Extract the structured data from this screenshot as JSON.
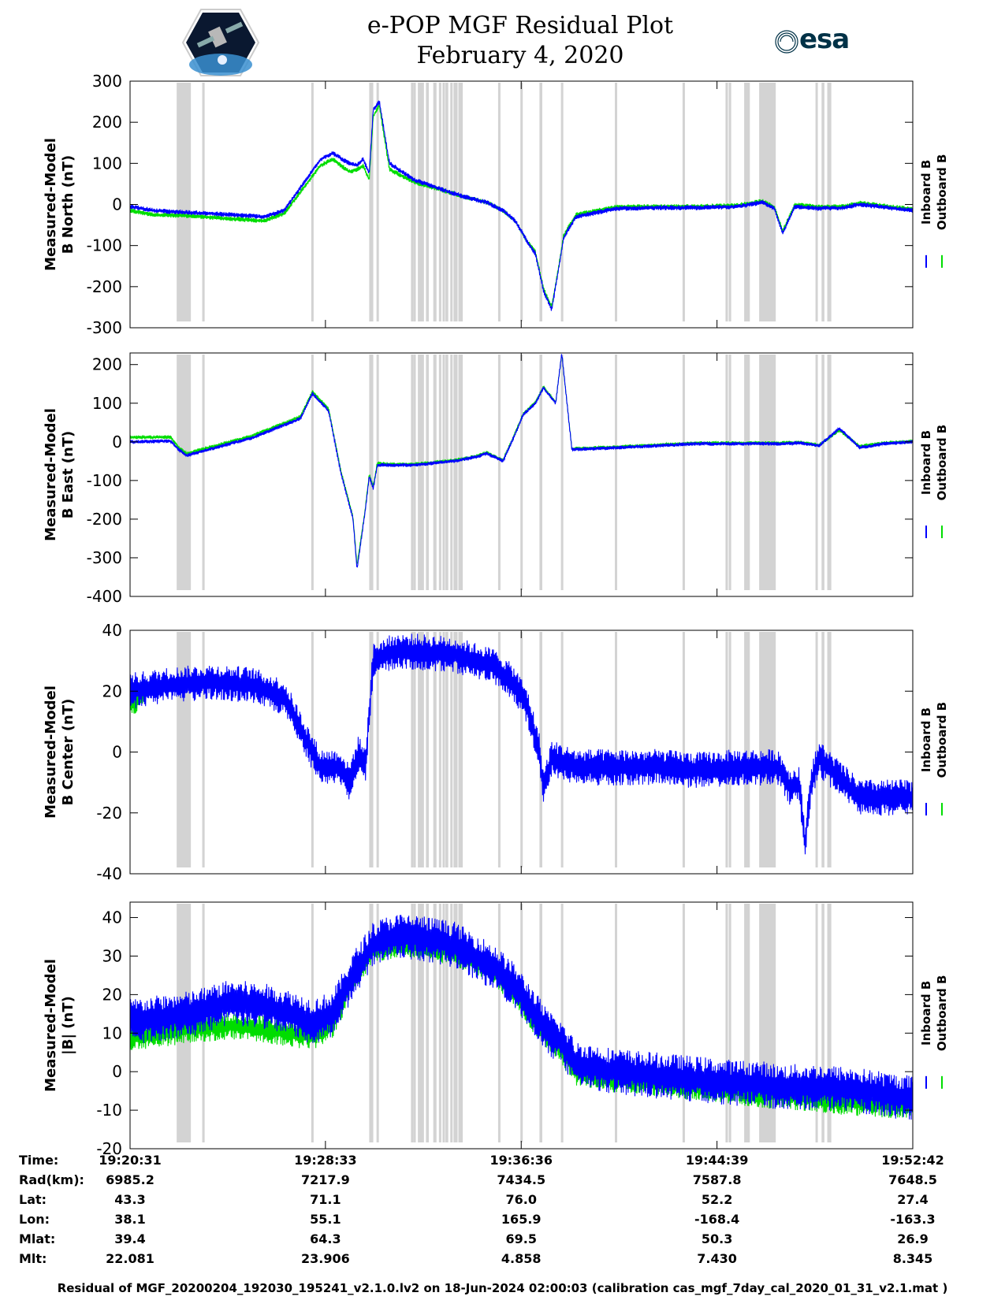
{
  "header": {
    "title": "e-POP MGF Residual Plot",
    "date": "February 4, 2020",
    "logo_left": "cassiope-logo",
    "logo_right_text": "esa"
  },
  "colors": {
    "inboard": "#0000ff",
    "outboard": "#00dd00",
    "gap_band": "#d3d3d3"
  },
  "legend": {
    "inboard": "Inboard B",
    "outboard": "Outboard B"
  },
  "time_axis": {
    "ticks_seconds": [
      0,
      482,
      965,
      1448,
      1931
    ],
    "start": "19:20:31",
    "end": "19:52:42"
  },
  "gap_bands_seconds": [
    [
      115,
      150
    ],
    [
      178,
      184
    ],
    [
      447,
      452
    ],
    [
      590,
      600
    ],
    [
      608,
      612
    ],
    [
      693,
      697
    ],
    [
      699,
      705
    ],
    [
      710,
      725
    ],
    [
      730,
      737
    ],
    [
      748,
      756
    ],
    [
      762,
      766
    ],
    [
      771,
      774
    ],
    [
      778,
      785
    ],
    [
      790,
      795
    ],
    [
      798,
      808
    ],
    [
      815,
      818
    ],
    [
      810,
      813
    ],
    [
      908,
      912
    ],
    [
      963,
      967
    ],
    [
      1010,
      1017
    ],
    [
      1063,
      1068
    ],
    [
      1196,
      1200
    ],
    [
      1363,
      1368
    ],
    [
      1469,
      1475
    ],
    [
      1477,
      1483
    ],
    [
      1515,
      1529
    ],
    [
      1552,
      1593
    ],
    [
      1691,
      1695
    ],
    [
      1706,
      1713
    ],
    [
      1720,
      1730
    ]
  ],
  "chart_data": [
    {
      "type": "line",
      "ylabel": [
        "Measured-Model",
        "B North (nT)"
      ],
      "ylim": [
        -300,
        300
      ],
      "yticks": [
        300,
        200,
        100,
        0,
        -100,
        -200,
        -300
      ],
      "grid": false,
      "legend_position": "right",
      "series": [
        {
          "name": "Inboard B",
          "noise": 5,
          "x": [
            0,
            60,
            150,
            250,
            330,
            380,
            420,
            470,
            500,
            540,
            560,
            575,
            590,
            600,
            615,
            640,
            700,
            760,
            820,
            880,
            920,
            950,
            980,
            1000,
            1020,
            1040,
            1055,
            1070,
            1100,
            1200,
            1300,
            1400,
            1500,
            1560,
            1590,
            1610,
            1640,
            1700,
            1760,
            1800,
            1931
          ],
          "y": [
            -5,
            -15,
            -20,
            -25,
            -30,
            -15,
            40,
            110,
            125,
            100,
            95,
            110,
            75,
            230,
            250,
            100,
            60,
            40,
            20,
            5,
            -15,
            -40,
            -90,
            -120,
            -210,
            -255,
            -170,
            -80,
            -30,
            -10,
            -8,
            -8,
            -5,
            5,
            -10,
            -70,
            -5,
            -10,
            -8,
            0,
            -15
          ]
        },
        {
          "name": "Outboard B",
          "noise": 5,
          "x": [
            0,
            60,
            150,
            250,
            330,
            380,
            420,
            470,
            500,
            540,
            560,
            575,
            590,
            600,
            615,
            640,
            700,
            760,
            820,
            880,
            920,
            950,
            980,
            1000,
            1020,
            1040,
            1055,
            1070,
            1100,
            1200,
            1300,
            1400,
            1500,
            1560,
            1590,
            1610,
            1640,
            1700,
            1760,
            1800,
            1931
          ],
          "y": [
            -15,
            -25,
            -28,
            -35,
            -40,
            -22,
            30,
            95,
            110,
            80,
            85,
            95,
            60,
            215,
            240,
            85,
            55,
            38,
            20,
            5,
            -15,
            -40,
            -90,
            -115,
            -205,
            -250,
            -165,
            -75,
            -25,
            -6,
            -5,
            -5,
            -2,
            8,
            -7,
            -65,
            0,
            -6,
            -5,
            4,
            -12
          ]
        }
      ]
    },
    {
      "type": "line",
      "ylabel": [
        "Measured-Model",
        "B East (nT)"
      ],
      "ylim": [
        -400,
        230
      ],
      "yticks": [
        200,
        100,
        0,
        -100,
        -200,
        -300,
        -400
      ],
      "grid": false,
      "legend_position": "right",
      "series": [
        {
          "name": "Inboard B",
          "noise": 4,
          "x": [
            0,
            100,
            120,
            140,
            300,
            420,
            450,
            490,
            520,
            550,
            560,
            580,
            590,
            600,
            610,
            640,
            700,
            800,
            850,
            880,
            920,
            950,
            970,
            1000,
            1020,
            1050,
            1065,
            1090,
            1200,
            1400,
            1600,
            1650,
            1700,
            1750,
            1800,
            1860,
            1931
          ],
          "y": [
            0,
            2,
            -20,
            -35,
            10,
            60,
            125,
            80,
            -80,
            -200,
            -330,
            -180,
            -90,
            -120,
            -60,
            -60,
            -60,
            -50,
            -40,
            -30,
            -50,
            20,
            70,
            100,
            140,
            100,
            230,
            -20,
            -15,
            -5,
            -5,
            -3,
            -10,
            35,
            -15,
            -5,
            0
          ]
        },
        {
          "name": "Outboard B",
          "noise": 4,
          "x": [
            0,
            100,
            120,
            140,
            300,
            420,
            450,
            490,
            520,
            550,
            560,
            580,
            590,
            600,
            610,
            640,
            700,
            800,
            850,
            880,
            920,
            950,
            970,
            1000,
            1020,
            1050,
            1065,
            1090,
            1200,
            1400,
            1600,
            1650,
            1700,
            1750,
            1800,
            1860,
            1931
          ],
          "y": [
            12,
            12,
            -15,
            -30,
            15,
            65,
            130,
            85,
            -75,
            -195,
            -320,
            -175,
            -85,
            -115,
            -55,
            -58,
            -58,
            -48,
            -38,
            -28,
            -48,
            22,
            72,
            102,
            142,
            102,
            228,
            -18,
            -13,
            -3,
            -3,
            -1,
            -8,
            30,
            -12,
            -3,
            2
          ]
        }
      ]
    },
    {
      "type": "line",
      "ylabel": [
        "Measured-Model",
        "B Center (nT)"
      ],
      "ylim": [
        -40,
        40
      ],
      "yticks": [
        40,
        20,
        0,
        -20,
        -40
      ],
      "grid": false,
      "legend_position": "right",
      "series": [
        {
          "name": "Inboard B",
          "noise": 5,
          "x": [
            0,
            100,
            200,
            300,
            380,
            430,
            470,
            520,
            540,
            565,
            580,
            600,
            650,
            700,
            800,
            900,
            950,
            980,
            1000,
            1010,
            1020,
            1040,
            1100,
            1200,
            1300,
            1400,
            1500,
            1600,
            1630,
            1650,
            1665,
            1680,
            1700,
            1760,
            1800,
            1860,
            1931
          ],
          "y": [
            20,
            22,
            23,
            22,
            18,
            5,
            -5,
            -5,
            -10,
            0,
            -5,
            30,
            33,
            33,
            32,
            28,
            22,
            15,
            5,
            0,
            -12,
            -2,
            -5,
            -5,
            -5,
            -6,
            -5,
            -5,
            -12,
            -10,
            -30,
            -10,
            -2,
            -10,
            -15,
            -15,
            -15
          ]
        },
        {
          "name": "Outboard B",
          "noise": 3,
          "x": [
            0,
            30,
            40
          ],
          "y": [
            15,
            18,
            22
          ]
        }
      ]
    },
    {
      "type": "line",
      "ylabel": [
        "Measured-Model",
        "|B| (nT)"
      ],
      "ylim": [
        -20,
        44
      ],
      "yticks": [
        40,
        30,
        20,
        10,
        0,
        -10,
        -20
      ],
      "grid": false,
      "legend_position": "right",
      "series": [
        {
          "name": "Inboard B",
          "noise": 5,
          "x": [
            0,
            80,
            150,
            250,
            330,
            400,
            450,
            500,
            550,
            600,
            650,
            700,
            800,
            900,
            950,
            1000,
            1030,
            1060,
            1100,
            1200,
            1300,
            1400,
            1500,
            1550,
            1600,
            1700,
            1800,
            1931
          ],
          "y": [
            13,
            14,
            15,
            18,
            17,
            15,
            13,
            15,
            25,
            33,
            35,
            35,
            33,
            27,
            22,
            15,
            10,
            8,
            2,
            0,
            -1,
            -2,
            -3,
            -3,
            -4,
            -4,
            -5,
            -7
          ]
        },
        {
          "name": "Outboard B",
          "noise": 3,
          "x": [
            0,
            80,
            150,
            250,
            330,
            400,
            450,
            500,
            550,
            600,
            650,
            700,
            800,
            900,
            950,
            1000,
            1030,
            1060,
            1100,
            1200,
            1300,
            1400,
            1500,
            1550,
            1600,
            1700,
            1800,
            1931
          ],
          "y": [
            9,
            10,
            11,
            12,
            11,
            10,
            9,
            12,
            24,
            32,
            33,
            33,
            31,
            26,
            20,
            13,
            9,
            6,
            0,
            -2,
            -3,
            -4,
            -5,
            -6,
            -6,
            -7,
            -8,
            -9
          ]
        }
      ]
    }
  ],
  "ephemeris": {
    "labels": [
      "Time:",
      "Rad(km):",
      "Lat:",
      "Lon:",
      "Mlat:",
      "Mlt:"
    ],
    "columns": [
      [
        "19:20:31",
        "6985.2",
        "43.3",
        "38.1",
        "39.4",
        "22.081"
      ],
      [
        "19:28:33",
        "7217.9",
        "71.1",
        "55.1",
        "64.3",
        "23.906"
      ],
      [
        "19:36:36",
        "7434.5",
        "76.0",
        "165.9",
        "69.5",
        "4.858"
      ],
      [
        "19:44:39",
        "7587.8",
        "52.2",
        "-168.4",
        "50.3",
        "7.430"
      ],
      [
        "19:52:42",
        "7648.5",
        "27.4",
        "-163.3",
        "26.9",
        "8.345"
      ]
    ]
  },
  "footer": "Residual of MGF_20200204_192030_195241_v2.1.0.lv2 on 18-Jun-2024 02:00:03 (calibration cas_mgf_7day_cal_2020_01_31_v2.1.mat )"
}
